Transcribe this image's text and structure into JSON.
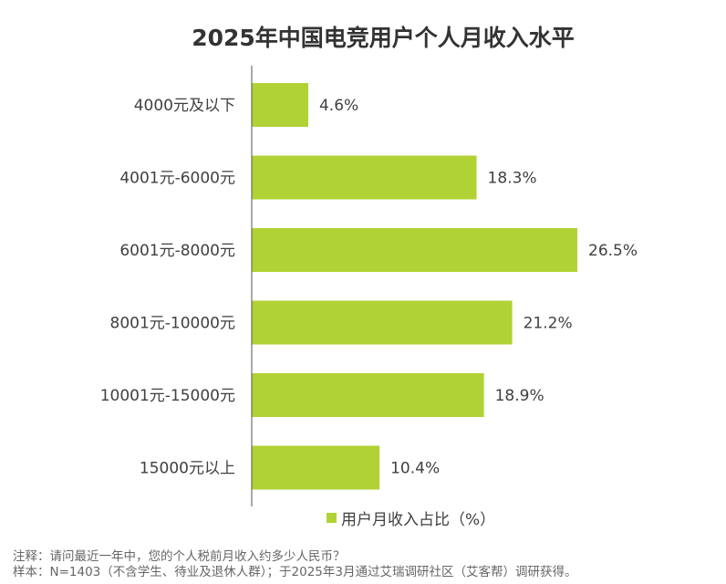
{
  "chart_data": {
    "type": "bar",
    "orientation": "horizontal",
    "title": "2025年中国电竞用户个人月收入水平",
    "categories": [
      "4000元及以下",
      "4001元-6000元",
      "6001元-8000元",
      "8001元-10000元",
      "10001元-15000元",
      "15000元以上"
    ],
    "series": [
      {
        "name": "用户月收入占比（%）",
        "values": [
          4.6,
          18.3,
          26.5,
          21.2,
          18.9,
          10.4
        ]
      }
    ],
    "data_labels": [
      "4.6%",
      "18.3%",
      "26.5%",
      "21.2%",
      "18.9%",
      "10.4%"
    ],
    "xlim": [
      0,
      30
    ],
    "grid": false,
    "legend_position": "bottom",
    "color": "#b0d234"
  },
  "notes": {
    "note": "注释：请问最近一年中，您的个人税前月收入约多少人民币？",
    "sample": "样本：N=1403（不含学生、待业及退休人群）；于2025年3月通过艾瑞调研社区（艾客帮）调研获得。"
  }
}
